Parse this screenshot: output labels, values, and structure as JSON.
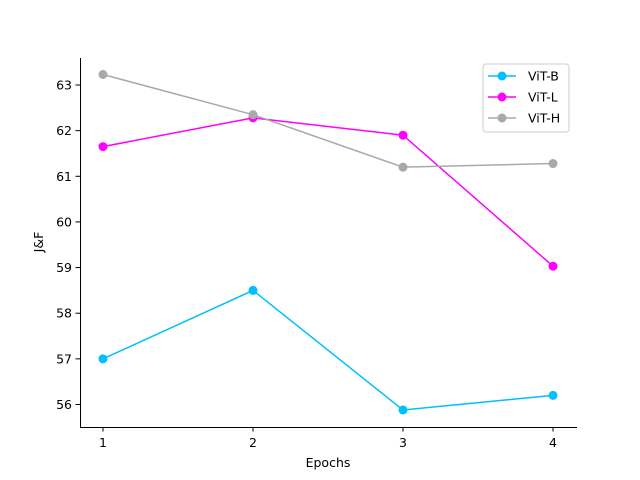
{
  "chart_data": {
    "type": "line",
    "xlabel": "Epochs",
    "ylabel": "J&F",
    "x": [
      1,
      2,
      3,
      4
    ],
    "xticks": [
      "1",
      "2",
      "3",
      "4"
    ],
    "yticks": [
      "56",
      "57",
      "58",
      "59",
      "60",
      "61",
      "62",
      "63"
    ],
    "ylim": [
      55.5,
      63.6
    ],
    "grid": false,
    "legend_position": "top-right",
    "series": [
      {
        "name": "ViT-B",
        "color": "#00bfff",
        "values": [
          57.0,
          58.5,
          55.88,
          56.2
        ]
      },
      {
        "name": "ViT-L",
        "color": "#ff00ff",
        "values": [
          61.65,
          62.28,
          61.9,
          59.03
        ]
      },
      {
        "name": "ViT-H",
        "color": "#a9a9a9",
        "values": [
          63.23,
          62.35,
          61.2,
          61.28
        ]
      }
    ]
  }
}
